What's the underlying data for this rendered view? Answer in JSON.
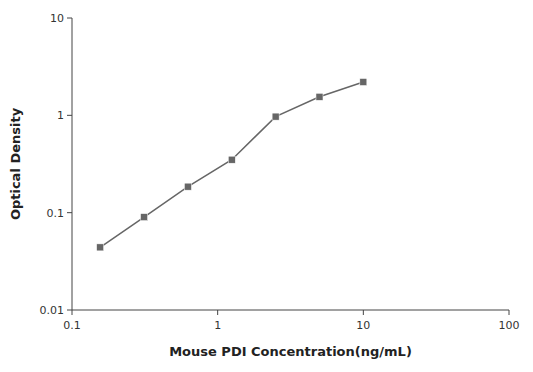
{
  "chart_data": {
    "type": "line",
    "x": [
      0.156,
      0.3125,
      0.625,
      1.25,
      2.5,
      5.0,
      10.0
    ],
    "values": [
      0.044,
      0.09,
      0.185,
      0.35,
      0.97,
      1.55,
      2.2
    ],
    "xlabel": "Mouse PDI Concentration(ng/mL)",
    "ylabel": "Optical Density",
    "xlim": [
      0.1,
      100
    ],
    "ylim": [
      0.01,
      10
    ],
    "xticks": [
      0.1,
      1,
      10,
      100
    ],
    "yticks": [
      0.01,
      0.1,
      1,
      10
    ],
    "log": true,
    "grid": false,
    "color": "#666666",
    "marker": "square"
  }
}
